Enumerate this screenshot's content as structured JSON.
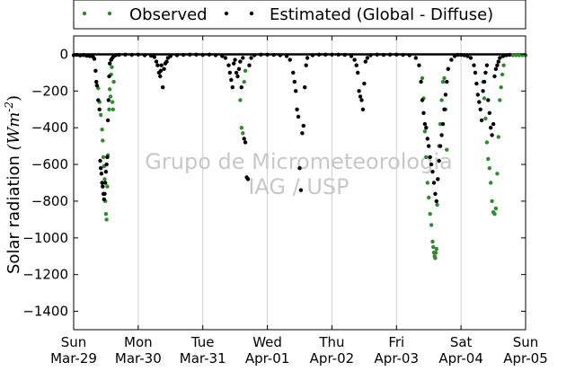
{
  "chart_data": {
    "type": "scatter",
    "title": "",
    "ylabel": "Solar radiation ",
    "ylabel_unit": "(Wm^-2)",
    "ylabel_unit_main": "(Wm",
    "ylabel_unit_exp": "-2",
    "ylabel_unit_close": ")",
    "ylim": [
      -1500,
      100
    ],
    "yticks": [
      0,
      -200,
      -400,
      -600,
      -800,
      -1000,
      -1200,
      -1400
    ],
    "xlim": [
      0,
      7
    ],
    "xticks": [
      {
        "x": 0,
        "day": "Sun",
        "date": "Mar-29"
      },
      {
        "x": 1,
        "day": "Mon",
        "date": "Mar-30"
      },
      {
        "x": 2,
        "day": "Tue",
        "date": "Mar-31"
      },
      {
        "x": 3,
        "day": "Wed",
        "date": "Apr-01"
      },
      {
        "x": 4,
        "day": "Thu",
        "date": "Apr-02"
      },
      {
        "x": 5,
        "day": "Fri",
        "date": "Apr-03"
      },
      {
        "x": 6,
        "day": "Sat",
        "date": "Apr-04"
      },
      {
        "x": 7,
        "day": "Sun",
        "date": "Apr-05"
      }
    ],
    "grid": {
      "x": true,
      "y": false
    },
    "legend": {
      "placement": "top-center",
      "entries": [
        {
          "label": "Observed",
          "color": "#2e8b2e"
        },
        {
          "label": "Estimated (Global - Diffuse)",
          "color": "#000000"
        }
      ]
    },
    "watermark": [
      "Grupo de Micrometeorologia",
      "IAG / USP"
    ],
    "series": [
      {
        "name": "Observed",
        "color": "#2e8b2e",
        "points": [
          [
            0.38,
            -185
          ],
          [
            0.4,
            -260
          ],
          [
            0.42,
            -330
          ],
          [
            0.44,
            -410
          ],
          [
            0.45,
            -470
          ],
          [
            0.46,
            -560
          ],
          [
            0.47,
            -610
          ],
          [
            0.48,
            -680
          ],
          [
            0.49,
            -800
          ],
          [
            0.5,
            -870
          ],
          [
            0.51,
            -900
          ],
          [
            0.52,
            -720
          ],
          [
            0.53,
            -550
          ],
          [
            0.55,
            -300
          ],
          [
            0.56,
            -190
          ],
          [
            0.57,
            -230
          ],
          [
            0.58,
            -110
          ],
          [
            0.59,
            -70
          ],
          [
            0.6,
            -260
          ],
          [
            0.61,
            -300
          ],
          [
            0.62,
            -150
          ],
          [
            2.58,
            -250
          ],
          [
            2.6,
            -400
          ],
          [
            2.62,
            -430
          ],
          [
            2.64,
            -150
          ],
          [
            2.66,
            -90
          ],
          [
            5.4,
            -130
          ],
          [
            5.42,
            -240
          ],
          [
            5.44,
            -420
          ],
          [
            5.46,
            -560
          ],
          [
            5.48,
            -700
          ],
          [
            5.5,
            -780
          ],
          [
            5.52,
            -870
          ],
          [
            5.54,
            -930
          ],
          [
            5.56,
            -1020
          ],
          [
            5.57,
            -1050
          ],
          [
            5.58,
            -1080
          ],
          [
            5.59,
            -1100
          ],
          [
            5.6,
            -1110
          ],
          [
            5.61,
            -1080
          ],
          [
            5.62,
            -1060
          ],
          [
            5.63,
            -820
          ],
          [
            5.64,
            -680
          ],
          [
            5.66,
            -500
          ],
          [
            5.68,
            -380
          ],
          [
            5.7,
            -250
          ],
          [
            5.72,
            -150
          ],
          [
            5.74,
            -130
          ],
          [
            5.76,
            -300
          ],
          [
            5.78,
            -520
          ],
          [
            6.34,
            -150
          ],
          [
            6.36,
            -240
          ],
          [
            6.38,
            -350
          ],
          [
            6.4,
            -480
          ],
          [
            6.42,
            -570
          ],
          [
            6.44,
            -620
          ],
          [
            6.46,
            -700
          ],
          [
            6.48,
            -800
          ],
          [
            6.5,
            -860
          ],
          [
            6.52,
            -870
          ],
          [
            6.54,
            -840
          ],
          [
            6.56,
            -650
          ],
          [
            6.58,
            -450
          ],
          [
            6.6,
            -250
          ],
          [
            6.62,
            -180
          ],
          [
            6.64,
            -110
          ],
          [
            6.66,
            -60
          ],
          [
            6.8,
            -5
          ],
          [
            6.85,
            -5
          ],
          [
            6.9,
            -5
          ],
          [
            6.95,
            -5
          ],
          [
            7.0,
            -5
          ]
        ]
      },
      {
        "name": "Estimated (Global - Diffuse)",
        "color": "#000000",
        "points": [
          [
            0.0,
            -5
          ],
          [
            0.05,
            -3
          ],
          [
            0.1,
            -6
          ],
          [
            0.15,
            -4
          ],
          [
            0.2,
            -8
          ],
          [
            0.25,
            -10
          ],
          [
            0.3,
            -15
          ],
          [
            0.32,
            -25
          ],
          [
            0.34,
            -90
          ],
          [
            0.35,
            -150
          ],
          [
            0.36,
            -170
          ],
          [
            0.38,
            -250
          ],
          [
            0.4,
            -300
          ],
          [
            0.41,
            -580
          ],
          [
            0.42,
            -620
          ],
          [
            0.43,
            -650
          ],
          [
            0.44,
            -700
          ],
          [
            0.45,
            -720
          ],
          [
            0.46,
            -760
          ],
          [
            0.47,
            -790
          ],
          [
            0.48,
            -760
          ],
          [
            0.49,
            -700
          ],
          [
            0.5,
            -640
          ],
          [
            0.51,
            -600
          ],
          [
            0.52,
            -560
          ],
          [
            0.53,
            -360
          ],
          [
            0.54,
            -250
          ],
          [
            0.55,
            -120
          ],
          [
            0.56,
            -50
          ],
          [
            0.58,
            -30
          ],
          [
            0.6,
            -20
          ],
          [
            0.62,
            -10
          ],
          [
            0.65,
            -5
          ],
          [
            0.7,
            -3
          ],
          [
            0.8,
            -2
          ],
          [
            0.9,
            -3
          ],
          [
            1.0,
            -2
          ],
          [
            1.1,
            -5
          ],
          [
            1.2,
            -8
          ],
          [
            1.25,
            -15
          ],
          [
            1.28,
            -40
          ],
          [
            1.3,
            -60
          ],
          [
            1.32,
            -100
          ],
          [
            1.34,
            -120
          ],
          [
            1.35,
            -90
          ],
          [
            1.36,
            -60
          ],
          [
            1.38,
            -180
          ],
          [
            1.4,
            -80
          ],
          [
            1.42,
            -50
          ],
          [
            1.44,
            -40
          ],
          [
            1.46,
            -20
          ],
          [
            1.5,
            -10
          ],
          [
            1.6,
            -5
          ],
          [
            1.7,
            -3
          ],
          [
            1.8,
            -2
          ],
          [
            1.9,
            -2
          ],
          [
            2.0,
            -3
          ],
          [
            2.1,
            -2
          ],
          [
            2.2,
            -5
          ],
          [
            2.3,
            -10
          ],
          [
            2.35,
            -20
          ],
          [
            2.4,
            -60
          ],
          [
            2.42,
            -100
          ],
          [
            2.44,
            -140
          ],
          [
            2.46,
            -180
          ],
          [
            2.48,
            -50
          ],
          [
            2.5,
            -30
          ],
          [
            2.52,
            -100
          ],
          [
            2.54,
            -120
          ],
          [
            2.56,
            -80
          ],
          [
            2.58,
            -40
          ],
          [
            2.6,
            -180
          ],
          [
            2.62,
            -20
          ],
          [
            2.64,
            -460
          ],
          [
            2.66,
            -480
          ],
          [
            2.68,
            -670
          ],
          [
            2.7,
            -680
          ],
          [
            2.72,
            -60
          ],
          [
            2.75,
            -20
          ],
          [
            2.8,
            -5
          ],
          [
            2.9,
            -2
          ],
          [
            3.0,
            -2
          ],
          [
            3.1,
            -3
          ],
          [
            3.2,
            -5
          ],
          [
            3.3,
            -10
          ],
          [
            3.35,
            -30
          ],
          [
            3.4,
            -100
          ],
          [
            3.42,
            -150
          ],
          [
            3.44,
            -200
          ],
          [
            3.46,
            -300
          ],
          [
            3.48,
            -340
          ],
          [
            3.5,
            -620
          ],
          [
            3.52,
            -740
          ],
          [
            3.54,
            -430
          ],
          [
            3.56,
            -390
          ],
          [
            3.58,
            -180
          ],
          [
            3.6,
            -60
          ],
          [
            3.62,
            -20
          ],
          [
            3.7,
            -5
          ],
          [
            3.8,
            -2
          ],
          [
            3.9,
            -2
          ],
          [
            4.0,
            -2
          ],
          [
            4.1,
            -2
          ],
          [
            4.2,
            -3
          ],
          [
            4.3,
            -10
          ],
          [
            4.35,
            -30
          ],
          [
            4.38,
            -60
          ],
          [
            4.4,
            -100
          ],
          [
            4.42,
            -200
          ],
          [
            4.44,
            -230
          ],
          [
            4.46,
            -250
          ],
          [
            4.48,
            -300
          ],
          [
            4.5,
            -160
          ],
          [
            4.52,
            -40
          ],
          [
            4.55,
            -20
          ],
          [
            4.6,
            -5
          ],
          [
            4.7,
            -2
          ],
          [
            4.8,
            -3
          ],
          [
            4.9,
            -2
          ],
          [
            5.0,
            -2
          ],
          [
            5.1,
            -3
          ],
          [
            5.2,
            -5
          ],
          [
            5.3,
            -20
          ],
          [
            5.35,
            -60
          ],
          [
            5.38,
            -150
          ],
          [
            5.4,
            -250
          ],
          [
            5.42,
            -320
          ],
          [
            5.44,
            -380
          ],
          [
            5.46,
            -400
          ],
          [
            5.48,
            -460
          ],
          [
            5.5,
            -500
          ],
          [
            5.52,
            -560
          ],
          [
            5.54,
            -600
          ],
          [
            5.56,
            -640
          ],
          [
            5.58,
            -700
          ],
          [
            5.6,
            -760
          ],
          [
            5.62,
            -800
          ],
          [
            5.64,
            -680
          ],
          [
            5.66,
            -580
          ],
          [
            5.68,
            -500
          ],
          [
            5.7,
            -440
          ],
          [
            5.72,
            -380
          ],
          [
            5.74,
            -300
          ],
          [
            5.76,
            -220
          ],
          [
            5.78,
            -150
          ],
          [
            5.8,
            -80
          ],
          [
            5.85,
            -30
          ],
          [
            5.9,
            -10
          ],
          [
            5.95,
            -3
          ],
          [
            6.0,
            -3
          ],
          [
            6.05,
            -5
          ],
          [
            6.1,
            -10
          ],
          [
            6.15,
            -20
          ],
          [
            6.2,
            -60
          ],
          [
            6.22,
            -100
          ],
          [
            6.24,
            -160
          ],
          [
            6.26,
            -220
          ],
          [
            6.28,
            -260
          ],
          [
            6.3,
            -300
          ],
          [
            6.32,
            -360
          ],
          [
            6.34,
            -200
          ],
          [
            6.36,
            -150
          ],
          [
            6.38,
            -100
          ],
          [
            6.4,
            -60
          ],
          [
            6.42,
            -250
          ],
          [
            6.44,
            -320
          ],
          [
            6.46,
            -400
          ],
          [
            6.48,
            -440
          ],
          [
            6.5,
            -380
          ],
          [
            6.52,
            -120
          ],
          [
            6.54,
            -80
          ],
          [
            6.56,
            -60
          ],
          [
            6.58,
            -40
          ],
          [
            6.6,
            -20
          ],
          [
            6.65,
            -10
          ],
          [
            6.7,
            -5
          ],
          [
            6.75,
            -3
          ]
        ]
      }
    ]
  }
}
